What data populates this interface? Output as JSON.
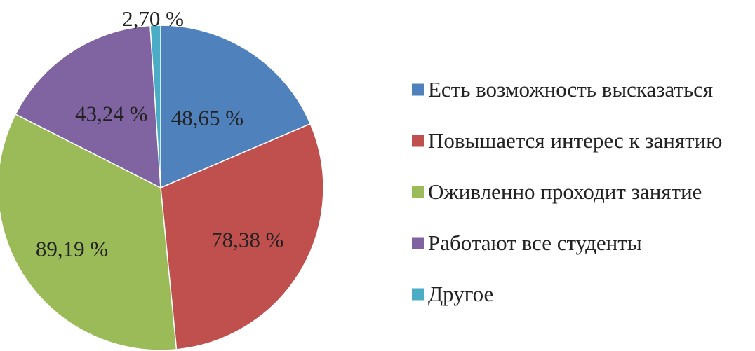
{
  "chart_data": {
    "type": "pie",
    "slices": [
      {
        "label": "Есть возможность высказаться",
        "value": 48.65,
        "value_label": "48,65 %",
        "color": "#4F81BD"
      },
      {
        "label": "Повышается интерес к занятию",
        "value": 78.38,
        "value_label": "78,38 %",
        "color": "#C0504D"
      },
      {
        "label": "Оживленно проходит занятие",
        "value": 89.19,
        "value_label": "89,19 %",
        "color": "#9BBB59"
      },
      {
        "label": "Работают все студенты",
        "value": 43.24,
        "value_label": "43,24 %",
        "color": "#8064A2"
      },
      {
        "label": "Другое",
        "value": 2.7,
        "value_label": "2,70 %",
        "color": "#4BACC6"
      }
    ],
    "start": "top",
    "direction": "clockwise",
    "legend": "right"
  }
}
